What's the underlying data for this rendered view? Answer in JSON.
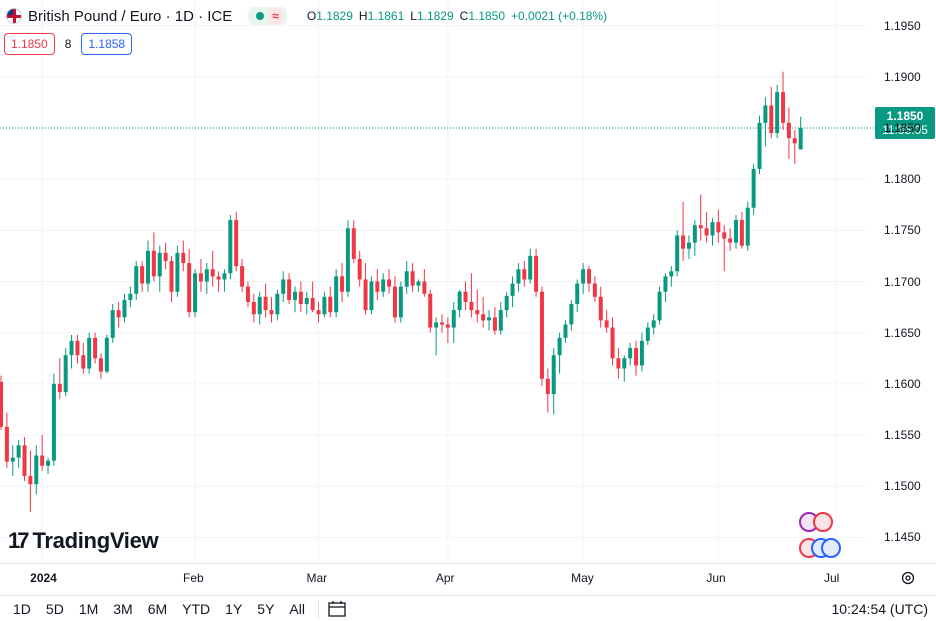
{
  "header": {
    "symbol_title": "British Pound / Euro · 1D · ICE",
    "ohlc": {
      "o_label": "O",
      "o_value": "1.1829",
      "h_label": "H",
      "h_value": "1.1861",
      "l_label": "L",
      "l_value": "1.1829",
      "c_label": "C",
      "c_value": "1.1850",
      "change": "+0.0021 (+0.18%)"
    },
    "market_status_icon": "market-open-dot",
    "delay_icon": "≈"
  },
  "quotes": {
    "sell": "1.1850",
    "spread": "8",
    "buy": "1.1858"
  },
  "last_price": {
    "price": "1.1850",
    "countdown": "11:35:05"
  },
  "branding": {
    "logo_text": "TradingView"
  },
  "toolbar": {
    "ranges": [
      "1D",
      "5D",
      "1M",
      "3M",
      "6M",
      "YTD",
      "1Y",
      "5Y",
      "All"
    ],
    "clock": "10:24:54 (UTC)"
  },
  "colors": {
    "up": "#089981",
    "down": "#f23645",
    "grid": "#f0f3fa",
    "text": "#131722"
  },
  "chart_data": {
    "type": "candlestick",
    "title": "British Pound / Euro · 1D · ICE",
    "ylim": [
      1.1425,
      1.1975
    ],
    "y_ticks": [
      "1.1450",
      "1.1500",
      "1.1550",
      "1.1600",
      "1.1650",
      "1.1700",
      "1.1750",
      "1.1800",
      "1.1850",
      "1.1900",
      "1.1950"
    ],
    "x_ticks": [
      {
        "label": "2024",
        "index": 7
      },
      {
        "label": "Feb",
        "index": 33
      },
      {
        "label": "Mar",
        "index": 54
      },
      {
        "label": "Apr",
        "index": 76
      },
      {
        "label": "May",
        "index": 99
      },
      {
        "label": "Jun",
        "index": 122
      },
      {
        "label": "Jul",
        "index": 142
      }
    ],
    "last_price": 1.185,
    "candles": [
      [
        1.1602,
        1.1608,
        1.1555,
        1.1558
      ],
      [
        1.1558,
        1.1572,
        1.1518,
        1.1524
      ],
      [
        1.1524,
        1.154,
        1.151,
        1.1528
      ],
      [
        1.1528,
        1.1545,
        1.1518,
        1.154
      ],
      [
        1.154,
        1.1548,
        1.1505,
        1.151
      ],
      [
        1.151,
        1.1535,
        1.1475,
        1.1502
      ],
      [
        1.1502,
        1.154,
        1.1492,
        1.153
      ],
      [
        1.153,
        1.155,
        1.1515,
        1.152
      ],
      [
        1.152,
        1.1528,
        1.1512,
        1.1525
      ],
      [
        1.1525,
        1.161,
        1.152,
        1.16
      ],
      [
        1.16,
        1.1625,
        1.1585,
        1.1592
      ],
      [
        1.1592,
        1.1635,
        1.1588,
        1.1628
      ],
      [
        1.1628,
        1.1648,
        1.1615,
        1.1642
      ],
      [
        1.1642,
        1.1648,
        1.162,
        1.1628
      ],
      [
        1.1628,
        1.164,
        1.161,
        1.1615
      ],
      [
        1.1615,
        1.165,
        1.161,
        1.1645
      ],
      [
        1.1645,
        1.165,
        1.162,
        1.1625
      ],
      [
        1.1625,
        1.163,
        1.1605,
        1.1612
      ],
      [
        1.1612,
        1.1648,
        1.161,
        1.1645
      ],
      [
        1.1645,
        1.1678,
        1.164,
        1.1672
      ],
      [
        1.1672,
        1.168,
        1.1655,
        1.1665
      ],
      [
        1.1665,
        1.1688,
        1.166,
        1.1682
      ],
      [
        1.1682,
        1.1695,
        1.1675,
        1.1688
      ],
      [
        1.1688,
        1.172,
        1.1682,
        1.1715
      ],
      [
        1.1715,
        1.172,
        1.169,
        1.1698
      ],
      [
        1.1698,
        1.174,
        1.169,
        1.173
      ],
      [
        1.173,
        1.1748,
        1.17,
        1.1705
      ],
      [
        1.1705,
        1.1735,
        1.169,
        1.1728
      ],
      [
        1.1728,
        1.1738,
        1.1712,
        1.172
      ],
      [
        1.172,
        1.1725,
        1.168,
        1.169
      ],
      [
        1.169,
        1.1735,
        1.1685,
        1.1728
      ],
      [
        1.1728,
        1.174,
        1.171,
        1.1718
      ],
      [
        1.1718,
        1.1732,
        1.1665,
        1.167
      ],
      [
        1.167,
        1.1712,
        1.1665,
        1.1708
      ],
      [
        1.1708,
        1.1722,
        1.169,
        1.17
      ],
      [
        1.17,
        1.1718,
        1.1688,
        1.1712
      ],
      [
        1.1712,
        1.173,
        1.1695,
        1.1705
      ],
      [
        1.1705,
        1.171,
        1.169,
        1.1702
      ],
      [
        1.1702,
        1.1712,
        1.169,
        1.1708
      ],
      [
        1.1708,
        1.1765,
        1.1702,
        1.176
      ],
      [
        1.176,
        1.1768,
        1.171,
        1.1715
      ],
      [
        1.1715,
        1.1722,
        1.169,
        1.1695
      ],
      [
        1.1695,
        1.17,
        1.1675,
        1.168
      ],
      [
        1.168,
        1.1688,
        1.166,
        1.1668
      ],
      [
        1.1668,
        1.169,
        1.1658,
        1.1685
      ],
      [
        1.1685,
        1.1698,
        1.1665,
        1.1672
      ],
      [
        1.1672,
        1.1685,
        1.166,
        1.1668
      ],
      [
        1.1668,
        1.1692,
        1.1662,
        1.1688
      ],
      [
        1.1688,
        1.171,
        1.168,
        1.1702
      ],
      [
        1.1702,
        1.1708,
        1.1678,
        1.1682
      ],
      [
        1.1682,
        1.1695,
        1.167,
        1.169
      ],
      [
        1.169,
        1.17,
        1.167,
        1.1678
      ],
      [
        1.1678,
        1.169,
        1.1668,
        1.1684
      ],
      [
        1.1684,
        1.17,
        1.167,
        1.1672
      ],
      [
        1.1672,
        1.168,
        1.166,
        1.1668
      ],
      [
        1.1668,
        1.169,
        1.1665,
        1.1685
      ],
      [
        1.1685,
        1.1695,
        1.1665,
        1.167
      ],
      [
        1.167,
        1.1712,
        1.1665,
        1.1705
      ],
      [
        1.1705,
        1.1718,
        1.168,
        1.169
      ],
      [
        1.169,
        1.176,
        1.1685,
        1.1752
      ],
      [
        1.1752,
        1.176,
        1.1718,
        1.1722
      ],
      [
        1.1722,
        1.173,
        1.1695,
        1.1702
      ],
      [
        1.1702,
        1.1718,
        1.1668,
        1.1672
      ],
      [
        1.1672,
        1.1705,
        1.1668,
        1.17
      ],
      [
        1.17,
        1.1712,
        1.1682,
        1.169
      ],
      [
        1.169,
        1.1708,
        1.1685,
        1.1702
      ],
      [
        1.1702,
        1.1712,
        1.1688,
        1.1695
      ],
      [
        1.1695,
        1.1705,
        1.166,
        1.1665
      ],
      [
        1.1665,
        1.17,
        1.166,
        1.1695
      ],
      [
        1.1695,
        1.172,
        1.1688,
        1.171
      ],
      [
        1.171,
        1.1718,
        1.169,
        1.1696
      ],
      [
        1.1696,
        1.1702,
        1.169,
        1.17
      ],
      [
        1.17,
        1.1712,
        1.1685,
        1.1688
      ],
      [
        1.1688,
        1.1692,
        1.165,
        1.1655
      ],
      [
        1.1655,
        1.1665,
        1.1628,
        1.166
      ],
      [
        1.166,
        1.1668,
        1.165,
        1.1658
      ],
      [
        1.1658,
        1.1665,
        1.164,
        1.1655
      ],
      [
        1.1655,
        1.168,
        1.164,
        1.1672
      ],
      [
        1.1672,
        1.1692,
        1.1665,
        1.169
      ],
      [
        1.169,
        1.17,
        1.1672,
        1.168
      ],
      [
        1.168,
        1.1708,
        1.1665,
        1.1672
      ],
      [
        1.1672,
        1.1692,
        1.166,
        1.1668
      ],
      [
        1.1668,
        1.1685,
        1.1655,
        1.1662
      ],
      [
        1.1662,
        1.1672,
        1.1652,
        1.1665
      ],
      [
        1.1665,
        1.1675,
        1.1648,
        1.1652
      ],
      [
        1.1652,
        1.168,
        1.1648,
        1.1672
      ],
      [
        1.1672,
        1.169,
        1.1665,
        1.1686
      ],
      [
        1.1686,
        1.1705,
        1.1675,
        1.1698
      ],
      [
        1.1698,
        1.1718,
        1.169,
        1.1712
      ],
      [
        1.1712,
        1.172,
        1.1695,
        1.1702
      ],
      [
        1.1702,
        1.1732,
        1.1698,
        1.1725
      ],
      [
        1.1725,
        1.1732,
        1.1685,
        1.169
      ],
      [
        1.169,
        1.1695,
        1.1598,
        1.1605
      ],
      [
        1.1605,
        1.1615,
        1.1572,
        1.159
      ],
      [
        1.159,
        1.1635,
        1.157,
        1.1628
      ],
      [
        1.1628,
        1.165,
        1.161,
        1.1645
      ],
      [
        1.1645,
        1.1662,
        1.164,
        1.1658
      ],
      [
        1.1658,
        1.1682,
        1.1652,
        1.1678
      ],
      [
        1.1678,
        1.1702,
        1.167,
        1.1698
      ],
      [
        1.1698,
        1.1718,
        1.1688,
        1.1712
      ],
      [
        1.1712,
        1.1715,
        1.169,
        1.1698
      ],
      [
        1.1698,
        1.1705,
        1.168,
        1.1685
      ],
      [
        1.1685,
        1.1695,
        1.1655,
        1.1662
      ],
      [
        1.1662,
        1.1672,
        1.165,
        1.1655
      ],
      [
        1.1655,
        1.1665,
        1.1618,
        1.1625
      ],
      [
        1.1625,
        1.1635,
        1.1605,
        1.1615
      ],
      [
        1.1615,
        1.1628,
        1.1602,
        1.1625
      ],
      [
        1.1625,
        1.164,
        1.1618,
        1.1635
      ],
      [
        1.1635,
        1.1642,
        1.1608,
        1.1618
      ],
      [
        1.1618,
        1.165,
        1.1612,
        1.1642
      ],
      [
        1.1642,
        1.166,
        1.1638,
        1.1655
      ],
      [
        1.1655,
        1.1668,
        1.1648,
        1.1662
      ],
      [
        1.1662,
        1.1695,
        1.1658,
        1.169
      ],
      [
        1.169,
        1.1708,
        1.168,
        1.1705
      ],
      [
        1.1705,
        1.1715,
        1.1695,
        1.171
      ],
      [
        1.171,
        1.175,
        1.1705,
        1.1745
      ],
      [
        1.1745,
        1.1778,
        1.172,
        1.1732
      ],
      [
        1.1732,
        1.1745,
        1.1722,
        1.1738
      ],
      [
        1.1738,
        1.176,
        1.1725,
        1.1755
      ],
      [
        1.1755,
        1.1785,
        1.174,
        1.1752
      ],
      [
        1.1752,
        1.1768,
        1.1738,
        1.1745
      ],
      [
        1.1745,
        1.1762,
        1.1735,
        1.1758
      ],
      [
        1.1758,
        1.177,
        1.1738,
        1.1748
      ],
      [
        1.1748,
        1.1755,
        1.171,
        1.1742
      ],
      [
        1.1742,
        1.1752,
        1.173,
        1.1738
      ],
      [
        1.1738,
        1.1765,
        1.1732,
        1.176
      ],
      [
        1.176,
        1.1768,
        1.1732,
        1.1735
      ],
      [
        1.1735,
        1.1778,
        1.173,
        1.1772
      ],
      [
        1.1772,
        1.1815,
        1.1765,
        1.181
      ],
      [
        1.181,
        1.1862,
        1.1805,
        1.1855
      ],
      [
        1.1855,
        1.188,
        1.1832,
        1.1872
      ],
      [
        1.1872,
        1.189,
        1.184,
        1.1845
      ],
      [
        1.1845,
        1.1892,
        1.184,
        1.1885
      ],
      [
        1.1885,
        1.1905,
        1.1848,
        1.1855
      ],
      [
        1.1855,
        1.187,
        1.182,
        1.184
      ],
      [
        1.184,
        1.1848,
        1.1815,
        1.1835
      ],
      [
        1.1829,
        1.1861,
        1.1829,
        1.185
      ]
    ]
  }
}
